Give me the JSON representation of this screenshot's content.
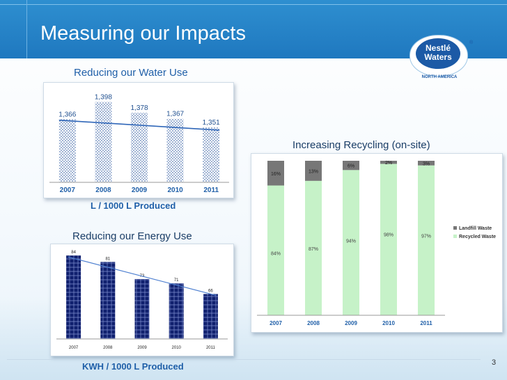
{
  "slide": {
    "title": "Measuring our Impacts",
    "page_number": "3",
    "logo": {
      "line1": "Nestlé",
      "line2": "Waters",
      "sub": "NORTH AMERICA",
      "registered": "®"
    }
  },
  "colors": {
    "topbar": "#1f78bf",
    "heading": "#1f5fa8",
    "water_bar": "#6f8fc0",
    "energy_bar": "#10206e",
    "recycled": "#c6f2c8",
    "landfill": "#777777"
  },
  "chart_data": [
    {
      "type": "bar",
      "title": "Reducing our Water Use",
      "xlabel": "L / 1000 L Produced",
      "categories": [
        "2007",
        "2008",
        "2009",
        "2010",
        "2011"
      ],
      "values": [
        1366,
        1398,
        1378,
        1367,
        1351
      ],
      "data_labels": [
        "1,366",
        "1,398",
        "1,378",
        "1,367",
        "1,351"
      ],
      "trendline": true,
      "ylim": [
        1250,
        1410
      ]
    },
    {
      "type": "bar",
      "title": "Reducing our Energy Use",
      "xlabel": "KWH / 1000 L Produced",
      "categories": [
        "2007",
        "2008",
        "2009",
        "2010",
        "2011"
      ],
      "values": [
        84,
        81,
        73,
        71,
        66
      ],
      "data_labels": [
        "84",
        "81",
        "73",
        "71",
        "66"
      ],
      "trendline": true,
      "ylim": [
        45,
        86
      ]
    },
    {
      "type": "bar",
      "stacked": true,
      "title": "Increasing Recycling (on-site)",
      "categories": [
        "2007",
        "2008",
        "2009",
        "2010",
        "2011"
      ],
      "series": [
        {
          "name": "Recycled Waste",
          "values": [
            84,
            87,
            94,
            98,
            97
          ],
          "labels": [
            "84%",
            "87%",
            "94%",
            "98%",
            "97%"
          ]
        },
        {
          "name": "Landfill Waste",
          "values": [
            16,
            13,
            6,
            2,
            3
          ],
          "labels": [
            "16%",
            "13%",
            "6%",
            "2%",
            "3%"
          ]
        }
      ],
      "legend": "right",
      "ylim": [
        0,
        100
      ]
    }
  ]
}
